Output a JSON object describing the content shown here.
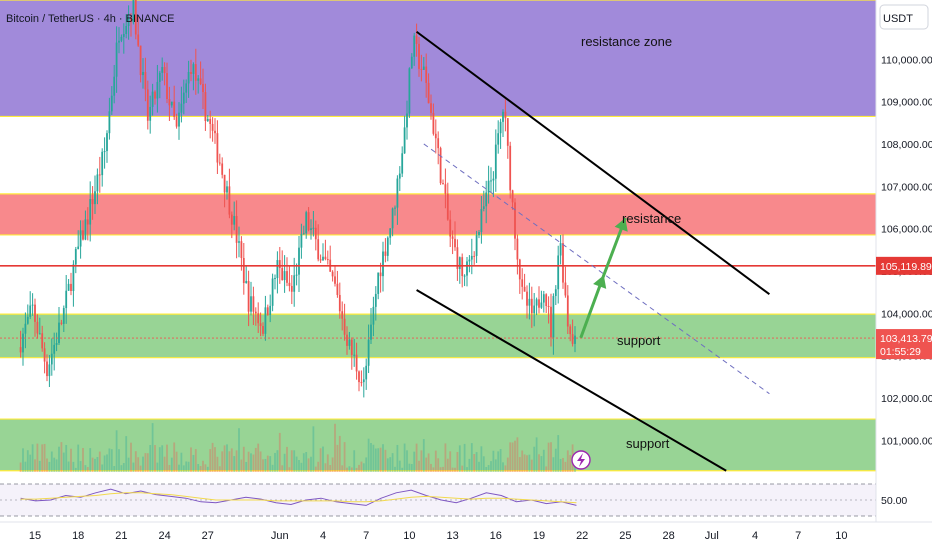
{
  "header": {
    "symbol": "Bitcoin / TetherUS · 4h · BINANCE"
  },
  "currency_button": "USDT",
  "colors": {
    "candle_up": "#26a69a",
    "candle_down": "#ef5350",
    "resistance_zone": "#9c84d8",
    "red_zone": "#f77c80",
    "green_zone": "#8dcf8a",
    "zone_border": "#ffeb3b",
    "price_line": "#e53935",
    "trend_line": "#000000",
    "arrow": "#4caf50",
    "rsi_line": "#7e57c2",
    "rsi_ma": "#f2d94e"
  },
  "chart_data": {
    "type": "candlestick",
    "ylim": [
      100250,
      111400
    ],
    "price_ticks": [
      101000,
      102000,
      103000,
      104000,
      105000,
      106000,
      107000,
      108000,
      109000,
      110000
    ],
    "price_tick_labels": [
      "101,000.00",
      "102,000.00",
      "103,000.00",
      "104,000.00",
      "105,000.00",
      "106,000.00",
      "107,000.00",
      "108,000.00",
      "109,000.00",
      "110,000.00"
    ],
    "x_axis": {
      "domain_days": [
        0,
        40.5
      ],
      "ticks": [
        {
          "day": 1,
          "label": "15"
        },
        {
          "day": 4,
          "label": "18"
        },
        {
          "day": 7,
          "label": "21"
        },
        {
          "day": 10,
          "label": "24"
        },
        {
          "day": 13,
          "label": "27"
        },
        {
          "day": 18,
          "label": "Jun"
        },
        {
          "day": 21,
          "label": "4"
        },
        {
          "day": 24,
          "label": "7"
        },
        {
          "day": 27,
          "label": "10"
        },
        {
          "day": 30,
          "label": "13"
        },
        {
          "day": 33,
          "label": "16"
        },
        {
          "day": 36,
          "label": "19"
        },
        {
          "day": 39,
          "label": "22"
        },
        {
          "day": 42,
          "label": "25"
        },
        {
          "day": 45,
          "label": "28"
        },
        {
          "day": 48,
          "label": "Jul"
        },
        {
          "day": 51,
          "label": "4"
        },
        {
          "day": 54,
          "label": "7"
        },
        {
          "day": 57,
          "label": "10"
        }
      ]
    },
    "price_path": [
      [
        0,
        103200
      ],
      [
        1,
        104100
      ],
      [
        2,
        102700
      ],
      [
        3,
        103800
      ],
      [
        4,
        105300
      ],
      [
        5,
        106500
      ],
      [
        6,
        107800
      ],
      [
        7,
        110700
      ],
      [
        8,
        111200
      ],
      [
        9,
        108600
      ],
      [
        10,
        109700
      ],
      [
        11,
        108300
      ],
      [
        12,
        109900
      ],
      [
        13,
        108800
      ],
      [
        14,
        107600
      ],
      [
        15,
        106100
      ],
      [
        16,
        104300
      ],
      [
        17,
        103700
      ],
      [
        18,
        105100
      ],
      [
        19,
        104500
      ],
      [
        20,
        106200
      ],
      [
        21,
        105400
      ],
      [
        22,
        104600
      ],
      [
        23,
        103200
      ],
      [
        24,
        102300
      ],
      [
        25,
        104900
      ],
      [
        26,
        106300
      ],
      [
        26.8,
        108200
      ],
      [
        27.4,
        110400
      ],
      [
        28.2,
        109600
      ],
      [
        29,
        108100
      ],
      [
        30,
        105800
      ],
      [
        31,
        104800
      ],
      [
        32,
        106000
      ],
      [
        33,
        107400
      ],
      [
        33.7,
        108900
      ],
      [
        34.4,
        106300
      ],
      [
        35,
        104400
      ],
      [
        35.8,
        103900
      ],
      [
        36.5,
        104700
      ],
      [
        37,
        103600
      ],
      [
        37.6,
        105800
      ],
      [
        38.2,
        103700
      ],
      [
        38.6,
        103420
      ]
    ],
    "current_price": 105119.89,
    "current_price_label": "105,119.89",
    "last_price": 103413.79,
    "last_price_label": "103,413.79",
    "countdown": "01:55:29",
    "zones": [
      {
        "name": "resistance zone",
        "label": "resistance zone",
        "from": 108650,
        "to": 111400
      },
      {
        "name": "resistance",
        "label": "resistance",
        "from": 105850,
        "to": 106820
      },
      {
        "name": "support-upper",
        "label": "support",
        "from": 102950,
        "to": 103980
      },
      {
        "name": "support-lower",
        "label": "support",
        "from": 100280,
        "to": 101500
      }
    ],
    "channel_upper": [
      [
        27.5,
        110650
      ],
      [
        52,
        104450
      ]
    ],
    "channel_lower": [
      [
        27.5,
        104550
      ],
      [
        49,
        100280
      ]
    ],
    "channel_mid": [
      [
        28,
        108000
      ],
      [
        52,
        102100
      ]
    ],
    "projection_arrow": [
      [
        38.9,
        103420
      ],
      [
        40.5,
        104900
      ],
      [
        42,
        106250
      ]
    ],
    "rsi": {
      "level_label": "50.00",
      "values": [
        52,
        49,
        50,
        55,
        53,
        58,
        62,
        57,
        60,
        56,
        54,
        52,
        48,
        47,
        50,
        53,
        51,
        47,
        45,
        50,
        52,
        48,
        46,
        44,
        52,
        58,
        61,
        55,
        50,
        47,
        52,
        58,
        55,
        48,
        50,
        46,
        48,
        44
      ],
      "ma": [
        51,
        51,
        52,
        53,
        54,
        55,
        57,
        58,
        58,
        57,
        56,
        54,
        52,
        50,
        50,
        50,
        50,
        49,
        49,
        49,
        49,
        49,
        48,
        48,
        49,
        51,
        53,
        54,
        53,
        52,
        51,
        52,
        52,
        51,
        50,
        49,
        48,
        47
      ]
    }
  }
}
